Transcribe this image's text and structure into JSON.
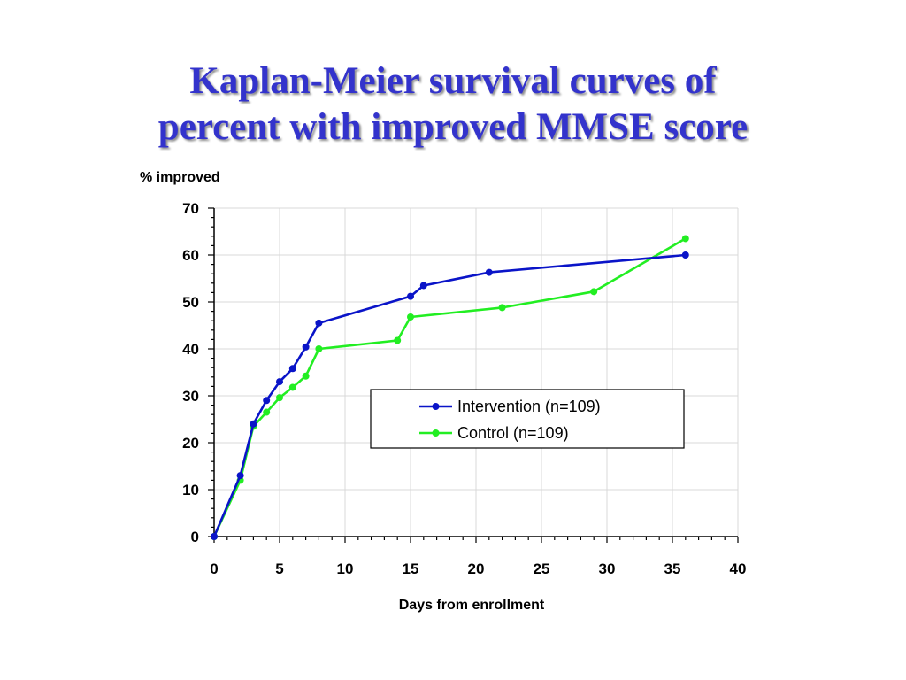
{
  "slide": {
    "title_line1": "Kaplan-Meier survival curves of",
    "title_line2": "percent with improved MMSE score"
  },
  "colors": {
    "title": "#3333cc",
    "intervention": "#0a14c8",
    "control": "#22ee22",
    "grid": "#d9d9d9"
  },
  "chart_data": {
    "type": "line",
    "title": "Kaplan-Meier survival curves of percent with improved MMSE score",
    "xlabel": "Days from enrollment",
    "ylabel": "% improved",
    "xlim": [
      0,
      40
    ],
    "ylim": [
      0,
      70
    ],
    "x_ticks": [
      0,
      5,
      10,
      15,
      20,
      25,
      30,
      35,
      40
    ],
    "y_ticks": [
      0,
      10,
      20,
      30,
      40,
      50,
      60,
      70
    ],
    "grid": true,
    "legend_position": "center-right",
    "series": [
      {
        "name": "Intervention (n=109)",
        "color": "#0a14c8",
        "points": [
          [
            0,
            0
          ],
          [
            2,
            13
          ],
          [
            3,
            24
          ],
          [
            4,
            29
          ],
          [
            5,
            33
          ],
          [
            6,
            35.8
          ],
          [
            7,
            40.4
          ],
          [
            8,
            45.5
          ],
          [
            15,
            51.2
          ],
          [
            16,
            53.5
          ],
          [
            21,
            56.3
          ],
          [
            36,
            60
          ]
        ]
      },
      {
        "name": "Control (n=109)",
        "color": "#22ee22",
        "points": [
          [
            0,
            0
          ],
          [
            2,
            12
          ],
          [
            3,
            23.5
          ],
          [
            4,
            26.5
          ],
          [
            5,
            29.6
          ],
          [
            6,
            31.8
          ],
          [
            7,
            34.2
          ],
          [
            8,
            40
          ],
          [
            14,
            41.8
          ],
          [
            15,
            46.8
          ],
          [
            22,
            48.8
          ],
          [
            29,
            52.2
          ],
          [
            36,
            63.5
          ]
        ]
      }
    ]
  }
}
